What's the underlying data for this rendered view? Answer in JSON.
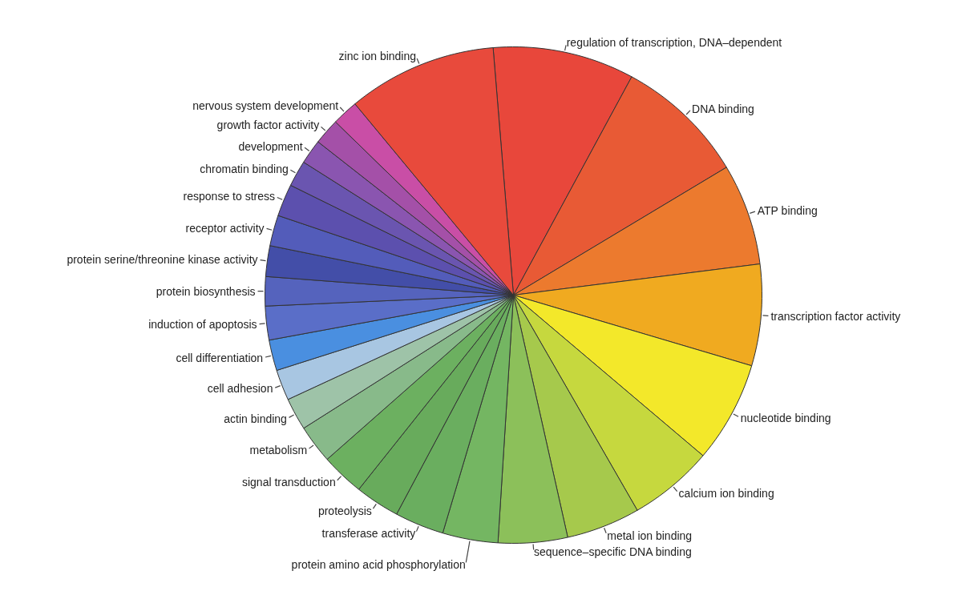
{
  "chart_data": {
    "type": "pie",
    "categories": [
      "regulation of transcription, DNA–dependent",
      "DNA binding",
      "ATP binding",
      "transcription factor activity",
      "nucleotide binding",
      "calcium ion binding",
      "metal ion binding",
      "sequence–specific DNA binding",
      "protein amino acid phosphorylation",
      "transferase activity",
      "proteolysis",
      "signal transduction",
      "metabolism",
      "actin binding",
      "cell adhesion",
      "cell differentiation",
      "induction of apoptosis",
      "protein biosynthesis",
      "protein serine/threonine kinase activity",
      "receptor activity",
      "response to stress",
      "chromatin binding",
      "development",
      "growth factor activity",
      "nervous system development",
      "zinc ion binding"
    ],
    "values": [
      9.2,
      8.5,
      6.6,
      6.6,
      6.6,
      5.5,
      4.8,
      4.5,
      3.6,
      3.2,
      2.9,
      2.8,
      2.5,
      2.1,
      2.0,
      2.0,
      2.2,
      1.9,
      2.0,
      2.0,
      2.1,
      1.7,
      1.6,
      1.7,
      1.7,
      9.7
    ],
    "colors": [
      "#e8473b",
      "#e85a35",
      "#ec7a2e",
      "#f0aa20",
      "#f3e82a",
      "#c6d83e",
      "#a6c94c",
      "#8cc05a",
      "#74b662",
      "#6aae5f",
      "#68ab5c",
      "#6cb060",
      "#88ba8a",
      "#9ec3a8",
      "#a8c6e2",
      "#4a8fe0",
      "#5a6ec8",
      "#5563bd",
      "#434ea8",
      "#535cba",
      "#5c50ae",
      "#6a55b0",
      "#8a55b0",
      "#a450a8",
      "#c94ea6",
      "#e84a3c"
    ]
  }
}
